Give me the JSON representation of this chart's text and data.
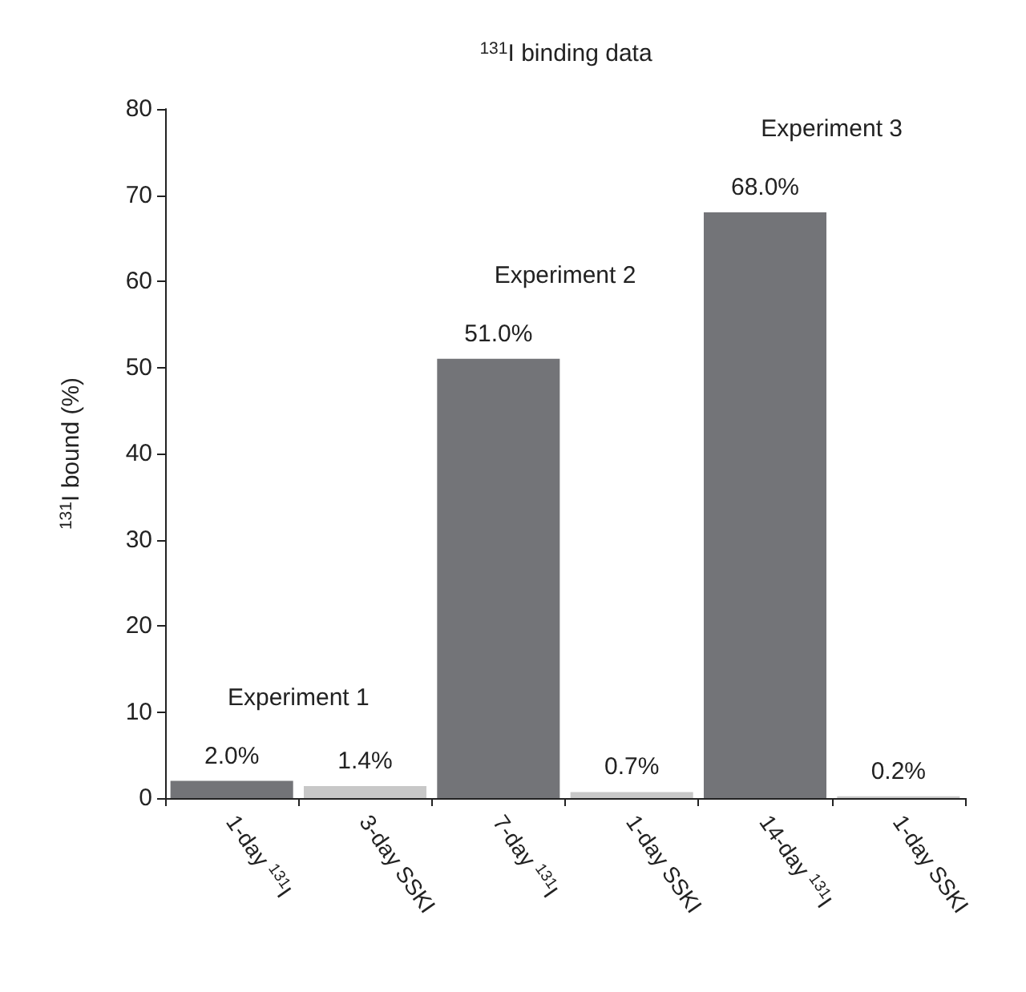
{
  "chart_data": {
    "type": "bar",
    "title": "$^{131}$I binding data",
    "ylabel": "$^{131}$I bound (%)",
    "categories": [
      "1-day $^{131}$I",
      "3-day SSKI",
      "7-day $^{131}$I",
      "1-day SSKI",
      "14-day $^{131}$I",
      "1-day SSKI"
    ],
    "values": [
      2.0,
      1.4,
      51.0,
      0.7,
      68.0,
      0.2
    ],
    "colors": [
      "#737478",
      "#c8c8c8",
      "#737478",
      "#c8c8c8",
      "#737478",
      "#c8c8c8"
    ],
    "value_labels": [
      "2.0%",
      "1.4%",
      "51.0%",
      "0.7%",
      "68.0%",
      "0.2%"
    ],
    "ylim": [
      0,
      80
    ],
    "yticks": [
      0,
      10,
      20,
      30,
      40,
      50,
      60,
      70,
      80
    ],
    "grid": false,
    "annotations": [
      "Experiment 1",
      "Experiment 2",
      "Experiment 3"
    ]
  }
}
